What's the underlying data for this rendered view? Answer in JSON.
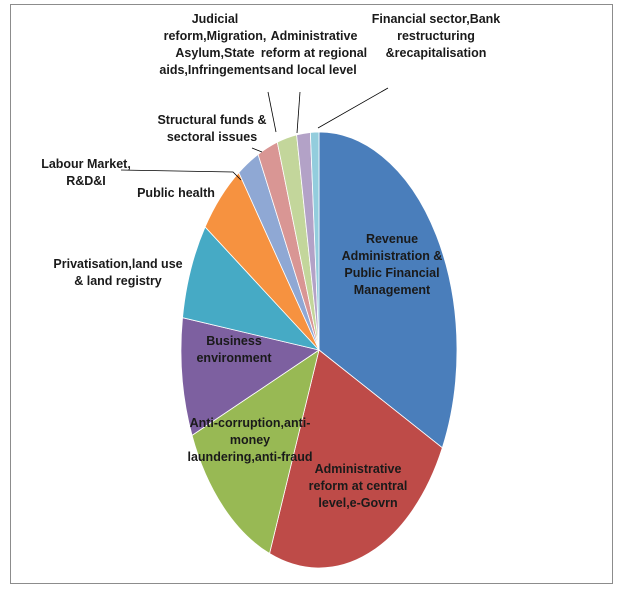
{
  "chart_data": {
    "type": "pie",
    "title": "",
    "colors": {
      "revenue": "#4a7ebb",
      "admin_central": "#be4b48",
      "anti_corruption": "#98b954",
      "business": "#7d60a0",
      "privatisation": "#46aac5",
      "public_health": "#f69240",
      "labour": "#8fa8d4",
      "structural": "#d99694",
      "judicial": "#c3d69b",
      "admin_regional": "#b3a2c7",
      "financial": "#93cddd"
    },
    "slices": [
      {
        "key": "revenue",
        "label": "Revenue Administration & Public Financial Management",
        "value": 32.5
      },
      {
        "key": "admin_central",
        "label": "Administrative reform at central level,e-Govrn",
        "value": 23.5
      },
      {
        "key": "anti_corruption",
        "label": "Anti-corruption,anti-money laundering,anti-fraud",
        "value": 12.8
      },
      {
        "key": "business",
        "label": "Business environment",
        "value": 8.8
      },
      {
        "key": "privatisation",
        "label": "Privatisation,land use & land registry",
        "value": 7.2
      },
      {
        "key": "public_health",
        "label": "Public health",
        "value": 5.6
      },
      {
        "key": "labour",
        "label": "Labour Market, R&D&I",
        "value": 2.6
      },
      {
        "key": "structural",
        "label": "Structural funds & sectoral issues",
        "value": 2.4
      },
      {
        "key": "judicial",
        "label": "Judicial reform,Migration, Asylum,State aids,Infringements",
        "value": 2.3
      },
      {
        "key": "admin_regional",
        "label": "Administrative reform at regional and local level",
        "value": 1.6
      },
      {
        "key": "financial",
        "label": "Financial sector,Bank restructuring &recapitalisation",
        "value": 1.0
      }
    ],
    "label_lines": {
      "revenue": [
        "Revenue",
        "Administration &",
        "Public Financial",
        "Management"
      ],
      "admin_central": [
        "Administrative",
        "reform at central",
        "level,e-Govrn"
      ],
      "anti_corruption": [
        "Anti-corruption,anti-",
        "money",
        "laundering,anti-fraud"
      ],
      "business": [
        "Business",
        "environment"
      ],
      "privatisation": [
        "Privatisation,land use",
        "& land registry"
      ],
      "public_health": [
        "Public health"
      ],
      "labour": [
        "Labour Market,",
        "R&D&I"
      ],
      "structural": [
        "Structural funds &",
        "sectoral issues"
      ],
      "judicial": [
        "Judicial",
        "reform,Migration,",
        "Asylum,State",
        "aids,Infringements"
      ],
      "admin_regional": [
        "Administrative",
        "reform at regional",
        "and local level"
      ],
      "financial": [
        "Financial sector,Bank",
        "restructuring",
        "&recapitalisation"
      ]
    }
  }
}
